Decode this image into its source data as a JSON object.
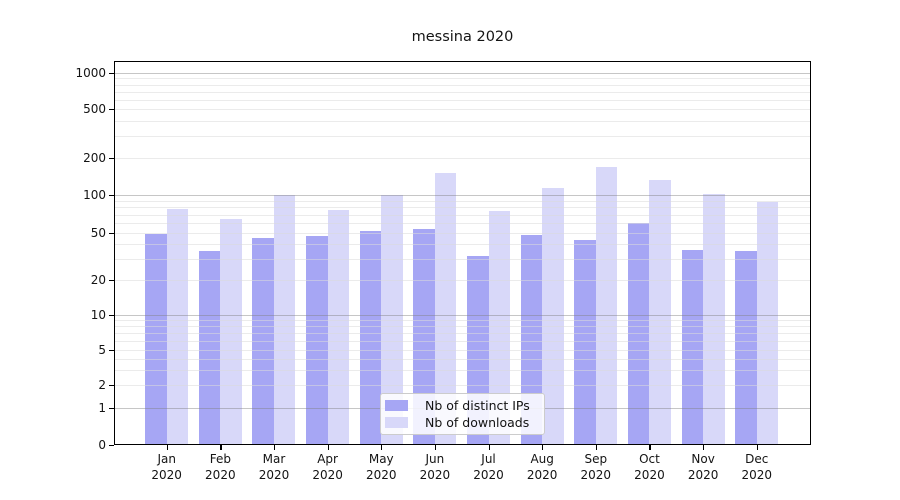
{
  "figure": {
    "title": "messina 2020"
  },
  "chart_data": {
    "type": "bar",
    "title": "messina 2020",
    "months": [
      "Jan",
      "Feb",
      "Mar",
      "Apr",
      "May",
      "Jun",
      "Jul",
      "Aug",
      "Sep",
      "Oct",
      "Nov",
      "Dec"
    ],
    "year_label": "2020",
    "categories": [
      "Jan 2020",
      "Feb 2020",
      "Mar 2020",
      "Apr 2020",
      "May 2020",
      "Jun 2020",
      "Jul 2020",
      "Aug 2020",
      "Sep 2020",
      "Oct 2020",
      "Nov 2020",
      "Dec 2020"
    ],
    "series": [
      {
        "name": "Nb of distinct IPs",
        "color": "#a6a6f4",
        "values": [
          49,
          35,
          45,
          47,
          52,
          54,
          32,
          48,
          44,
          60,
          36,
          35
        ]
      },
      {
        "name": "Nb of downloads",
        "color": "#d8d8f9",
        "values": [
          77,
          65,
          100,
          76,
          100,
          150,
          75,
          115,
          170,
          132,
          102,
          88
        ]
      }
    ],
    "yscale": "symlog",
    "y_ticks": [
      0,
      1,
      2,
      5,
      10,
      20,
      50,
      100,
      200,
      500,
      1000
    ],
    "ylim": [
      0,
      1200
    ],
    "grid": "horizontal log major+minor, drawn over bars",
    "legend_position": "lower center inside plot"
  },
  "colors": {
    "bar_distinct_ips": "#a6a6f4",
    "bar_downloads": "#d8d8f9",
    "axis": "#000000",
    "grid_minor": "#ebebeb",
    "grid_major": "#c2c2c2",
    "legend_border": "#cccccc",
    "background": "#ffffff"
  }
}
